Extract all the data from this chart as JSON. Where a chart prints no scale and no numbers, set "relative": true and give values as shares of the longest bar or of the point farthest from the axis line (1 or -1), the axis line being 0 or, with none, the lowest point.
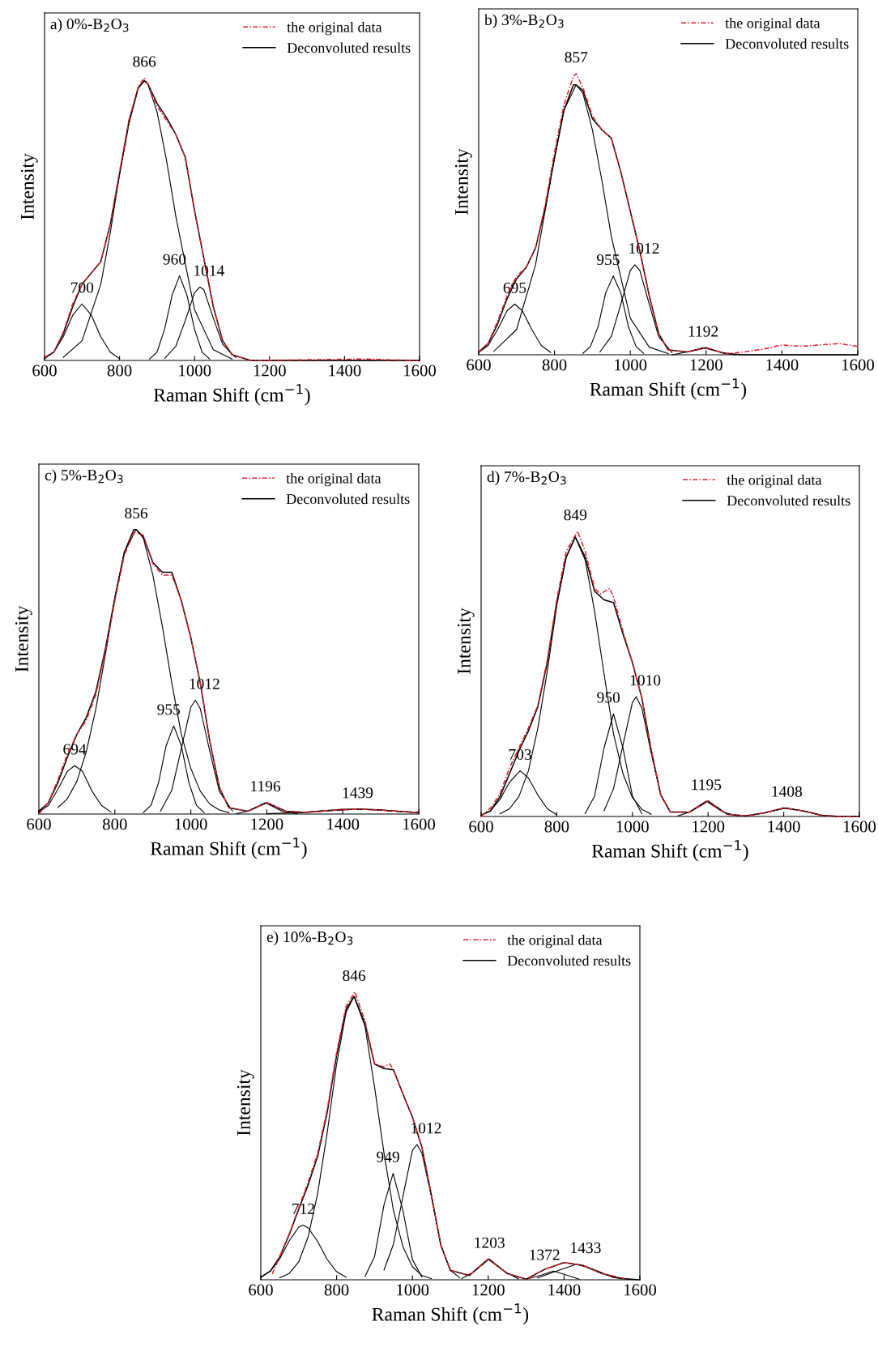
{
  "chart_data": [
    {
      "type": "line",
      "title": "a) 0%-B$_{2}$O$_{3}$",
      "xlabel": "Raman Shift (cm$^{−1}$)",
      "ylabel": "Intensity",
      "relative": true,
      "xlim": [
        600,
        1600
      ],
      "xticks": [
        600,
        800,
        1000,
        1200,
        1400,
        1600
      ],
      "legend": "top right",
      "grid": false,
      "series": [
        {
          "name": "the original data",
          "color": "#e8202a",
          "line_style": "dashed",
          "x": [
            600,
            625,
            650,
            675,
            700,
            725,
            750,
            775,
            800,
            825,
            850,
            866,
            875,
            900,
            925,
            950,
            975,
            1000,
            1025,
            1050,
            1075,
            1100,
            1150,
            1450,
            1595
          ],
          "values": [
            0.01,
            0.03,
            0.1,
            0.2,
            0.27,
            0.31,
            0.35,
            0.48,
            0.67,
            0.85,
            0.97,
            1.0,
            0.98,
            0.9,
            0.85,
            0.8,
            0.72,
            0.53,
            0.36,
            0.19,
            0.07,
            0.02,
            0.0,
            0.005,
            0.0
          ]
        },
        {
          "name": "Deconvoluted results",
          "color": "#000000",
          "x": [
            600,
            625,
            650,
            675,
            700,
            725,
            750,
            775,
            800,
            825,
            850,
            866,
            875,
            900,
            925,
            950,
            975,
            1000,
            1025,
            1050,
            1075,
            1100,
            1150,
            1200,
            1300,
            1400,
            1500,
            1600
          ],
          "values": [
            0.01,
            0.03,
            0.095,
            0.19,
            0.27,
            0.31,
            0.35,
            0.48,
            0.66,
            0.84,
            0.965,
            0.99,
            0.98,
            0.91,
            0.86,
            0.8,
            0.72,
            0.53,
            0.36,
            0.19,
            0.07,
            0.02,
            0.0,
            0.0,
            0.0,
            0.0,
            0.0,
            0.0
          ]
        },
        {
          "color": "#000000",
          "x": [
            600,
            625,
            650,
            675,
            700,
            725,
            750,
            775,
            800
          ],
          "values": [
            0.006,
            0.03,
            0.084,
            0.16,
            0.2,
            0.16,
            0.084,
            0.03,
            0.006
          ]
        },
        {
          "color": "#000000",
          "x": [
            650,
            700,
            750,
            775,
            800,
            825,
            850,
            866,
            875,
            900,
            925,
            950,
            1000,
            1050,
            1100
          ],
          "values": [
            0.011,
            0.07,
            0.27,
            0.45,
            0.66,
            0.85,
            0.965,
            0.99,
            0.98,
            0.88,
            0.71,
            0.51,
            0.18,
            0.038,
            0.005
          ]
        },
        {
          "color": "#000000",
          "x": [
            880,
            900,
            920,
            940,
            960,
            980,
            1000,
            1020,
            1040
          ],
          "values": [
            0.005,
            0.03,
            0.11,
            0.23,
            0.3,
            0.23,
            0.11,
            0.03,
            0.005
          ]
        },
        {
          "color": "#000000",
          "x": [
            920,
            950,
            975,
            1000,
            1014,
            1025,
            1050,
            1075,
            1110
          ],
          "values": [
            0.007,
            0.05,
            0.14,
            0.24,
            0.26,
            0.25,
            0.15,
            0.057,
            0.01
          ]
        }
      ],
      "annotations": [
        {
          "text": "700",
          "x": 700,
          "y": 0.2
        },
        {
          "text": "866",
          "x": 866,
          "y": 1.0
        },
        {
          "text": "960",
          "x": 960,
          "y": 0.3
        },
        {
          "text": "1014",
          "x": 1014,
          "y": 0.26
        }
      ]
    },
    {
      "type": "line",
      "title": "b) 3%-B$_{2}$O$_{3}$",
      "xlabel": "Raman Shift (cm$^{−1}$)",
      "ylabel": "Intensity",
      "relative": true,
      "xlim": [
        600,
        1600
      ],
      "xticks": [
        600,
        800,
        1000,
        1200,
        1400,
        1600
      ],
      "legend": "top right",
      "grid": false,
      "series": [
        {
          "name": "the original data",
          "color": "#e8202a",
          "line_style": "dashed",
          "x": [
            600,
            625,
            650,
            675,
            700,
            725,
            750,
            775,
            800,
            825,
            850,
            857,
            875,
            900,
            925,
            950,
            975,
            1000,
            1025,
            1050,
            1075,
            1100,
            1150,
            1200,
            1250,
            1300,
            1350,
            1400,
            1450,
            1500,
            1550,
            1600
          ],
          "values": [
            0.01,
            0.04,
            0.12,
            0.21,
            0.28,
            0.31,
            0.38,
            0.53,
            0.72,
            0.89,
            0.99,
            1.0,
            0.95,
            0.85,
            0.8,
            0.77,
            0.65,
            0.51,
            0.37,
            0.21,
            0.075,
            0.017,
            0.01,
            0.025,
            0.004,
            0.01,
            0.02,
            0.035,
            0.03,
            0.035,
            0.04,
            0.03
          ]
        },
        {
          "name": "Deconvoluted results",
          "color": "#000000",
          "x": [
            600,
            625,
            650,
            675,
            700,
            725,
            750,
            775,
            800,
            825,
            850,
            857,
            875,
            900,
            925,
            950,
            975,
            1000,
            1025,
            1050,
            1075,
            1100,
            1150,
            1200,
            1250,
            1300,
            1400,
            1500,
            1600
          ],
          "values": [
            0.01,
            0.04,
            0.11,
            0.2,
            0.27,
            0.31,
            0.38,
            0.52,
            0.7,
            0.87,
            0.96,
            0.96,
            0.94,
            0.84,
            0.8,
            0.77,
            0.65,
            0.51,
            0.37,
            0.21,
            0.075,
            0.017,
            0.01,
            0.025,
            0.004,
            0.0,
            0.0,
            0.0,
            0.0
          ]
        },
        {
          "color": "#000000",
          "x": [
            600,
            625,
            650,
            675,
            695,
            715,
            740,
            765,
            790
          ],
          "values": [
            0.008,
            0.033,
            0.09,
            0.157,
            0.18,
            0.157,
            0.09,
            0.033,
            0.008
          ]
        },
        {
          "color": "#000000",
          "x": [
            640,
            700,
            750,
            800,
            825,
            857,
            875,
            900,
            925,
            950,
            1000,
            1050,
            1100
          ],
          "values": [
            0.012,
            0.09,
            0.32,
            0.7,
            0.87,
            0.96,
            0.93,
            0.8,
            0.62,
            0.42,
            0.13,
            0.027,
            0.004
          ]
        },
        {
          "color": "#000000",
          "x": [
            875,
            895,
            915,
            935,
            955,
            975,
            995,
            1015,
            1035
          ],
          "values": [
            0.005,
            0.03,
            0.1,
            0.22,
            0.28,
            0.22,
            0.1,
            0.03,
            0.005
          ]
        },
        {
          "color": "#000000",
          "x": [
            920,
            950,
            975,
            1000,
            1012,
            1025,
            1050,
            1075,
            1110
          ],
          "values": [
            0.01,
            0.066,
            0.18,
            0.3,
            0.32,
            0.3,
            0.18,
            0.064,
            0.008
          ]
        },
        {
          "color": "#000000",
          "x": [
            1110,
            1150,
            1192,
            1235,
            1275
          ],
          "values": [
            0.0,
            0.01,
            0.025,
            0.01,
            0.0
          ]
        }
      ],
      "annotations": [
        {
          "text": "695",
          "x": 695,
          "y": 0.18
        },
        {
          "text": "857",
          "x": 857,
          "y": 1.0
        },
        {
          "text": "955",
          "x": 955,
          "y": 0.28
        },
        {
          "text": "1012",
          "x": 1012,
          "y": 0.32
        },
        {
          "text": "1192",
          "x": 1192,
          "y": 0.025
        }
      ]
    },
    {
      "type": "line",
      "title": "c) 5%-B$_{2}$O$_{3}$",
      "xlabel": "Raman Shift (cm$^{−1}$)",
      "ylabel": "Intensity",
      "relative": true,
      "xlim": [
        600,
        1600
      ],
      "xticks": [
        600,
        800,
        1000,
        1200,
        1400,
        1600
      ],
      "legend": "top right",
      "grid": false,
      "series": [
        {
          "name": "the original data",
          "color": "#e8202a",
          "line_style": "dashed",
          "x": [
            600,
            625,
            650,
            675,
            700,
            725,
            750,
            775,
            800,
            825,
            850,
            856,
            875,
            900,
            925,
            950,
            975,
            1000,
            1025,
            1050,
            1075,
            1100,
            1150,
            1200,
            1250,
            1300,
            1350,
            1400,
            1450,
            1500,
            1550,
            1600
          ],
          "values": [
            0.0,
            0.04,
            0.12,
            0.21,
            0.28,
            0.33,
            0.42,
            0.57,
            0.75,
            0.91,
            0.99,
            0.99,
            0.98,
            0.88,
            0.84,
            0.84,
            0.75,
            0.62,
            0.46,
            0.255,
            0.094,
            0.022,
            0.01,
            0.04,
            0.01,
            0.006,
            0.011,
            0.016,
            0.017,
            0.014,
            0.009,
            0.005
          ]
        },
        {
          "name": "Deconvoluted results",
          "color": "#000000",
          "x": [
            600,
            625,
            650,
            675,
            700,
            725,
            750,
            775,
            800,
            825,
            850,
            856,
            875,
            900,
            925,
            950,
            975,
            1000,
            1025,
            1050,
            1075,
            1100,
            1150,
            1200,
            1250,
            1300,
            1350,
            1400,
            1450,
            1500,
            1550,
            1600
          ],
          "values": [
            0.01,
            0.04,
            0.11,
            0.2,
            0.28,
            0.34,
            0.43,
            0.58,
            0.76,
            0.92,
            1.0,
            1.0,
            0.975,
            0.885,
            0.85,
            0.85,
            0.75,
            0.62,
            0.46,
            0.255,
            0.094,
            0.022,
            0.01,
            0.04,
            0.01,
            0.006,
            0.011,
            0.016,
            0.017,
            0.014,
            0.009,
            0.005
          ]
        },
        {
          "color": "#000000",
          "x": [
            600,
            625,
            650,
            675,
            694,
            715,
            740,
            765,
            790
          ],
          "values": [
            0.008,
            0.03,
            0.087,
            0.15,
            0.17,
            0.15,
            0.08,
            0.03,
            0.007
          ]
        },
        {
          "color": "#000000",
          "x": [
            650,
            675,
            700,
            725,
            750,
            775,
            800,
            825,
            856,
            875,
            900,
            925,
            950,
            975,
            1000,
            1025,
            1050,
            1075,
            1100
          ],
          "values": [
            0.023,
            0.054,
            0.115,
            0.22,
            0.37,
            0.56,
            0.76,
            0.92,
            1.0,
            0.97,
            0.84,
            0.66,
            0.46,
            0.28,
            0.16,
            0.08,
            0.035,
            0.014,
            0.005
          ]
        },
        {
          "color": "#000000",
          "x": [
            875,
            895,
            915,
            935,
            955,
            975,
            995,
            1015,
            1035
          ],
          "values": [
            0.005,
            0.03,
            0.11,
            0.24,
            0.31,
            0.24,
            0.11,
            0.03,
            0.005
          ]
        },
        {
          "color": "#000000",
          "x": [
            920,
            950,
            975,
            1000,
            1012,
            1025,
            1050,
            1075,
            1110
          ],
          "values": [
            0.01,
            0.084,
            0.23,
            0.376,
            0.4,
            0.37,
            0.22,
            0.08,
            0.01
          ]
        },
        {
          "color": "#000000",
          "x": [
            1120,
            1150,
            1196,
            1240,
            1280
          ],
          "values": [
            0.001,
            0.01,
            0.04,
            0.01,
            0.001
          ]
        },
        {
          "color": "#000000",
          "x": [
            1200,
            1300,
            1350,
            1439,
            1500,
            1550,
            1600
          ],
          "values": [
            0.001,
            0.006,
            0.011,
            0.017,
            0.014,
            0.009,
            0.005
          ]
        }
      ],
      "annotations": [
        {
          "text": "694",
          "x": 694,
          "y": 0.17
        },
        {
          "text": "856",
          "x": 856,
          "y": 1.0
        },
        {
          "text": "955",
          "x": 955,
          "y": 0.31
        },
        {
          "text": "1012",
          "x": 1012,
          "y": 0.4
        },
        {
          "text": "1196",
          "x": 1196,
          "y": 0.04
        },
        {
          "text": "1439",
          "x": 1439,
          "y": 0.017
        }
      ]
    },
    {
      "type": "line",
      "title": "d) 7%-B$_{2}$O$_{3}$",
      "xlabel": "Raman Shift (cm$^{−1}$)",
      "ylabel": "Intensity",
      "relative": true,
      "xlim": [
        600,
        1600
      ],
      "xticks": [
        600,
        800,
        1000,
        1200,
        1400,
        1600
      ],
      "legend": "top right",
      "grid": false,
      "series": [
        {
          "name": "the original data",
          "color": "#e8202a",
          "line_style": "dashed",
          "x": [
            600,
            625,
            650,
            675,
            700,
            725,
            750,
            775,
            800,
            825,
            855,
            875,
            900,
            915,
            940,
            950,
            975,
            1000,
            1025,
            1050,
            1075,
            1100,
            1150,
            1200,
            1250,
            1300,
            1350,
            1400,
            1450,
            1500,
            1550,
            1595
          ],
          "values": [
            0.0,
            0.03,
            0.08,
            0.17,
            0.24,
            0.31,
            0.39,
            0.55,
            0.76,
            0.93,
            1.0,
            0.93,
            0.8,
            0.78,
            0.8,
            0.77,
            0.65,
            0.54,
            0.415,
            0.23,
            0.075,
            0.016,
            0.015,
            0.054,
            0.008,
            0.002,
            0.013,
            0.03,
            0.02,
            0.004,
            0.0,
            0.001
          ]
        },
        {
          "name": "Deconvoluted results",
          "color": "#000000",
          "x": [
            600,
            625,
            650,
            675,
            700,
            725,
            750,
            775,
            800,
            825,
            849,
            875,
            900,
            925,
            950,
            975,
            1000,
            1025,
            1050,
            1075,
            1100,
            1150,
            1200,
            1250,
            1300,
            1350,
            1400,
            1450,
            1500,
            1550,
            1600
          ],
          "values": [
            0.004,
            0.02,
            0.07,
            0.15,
            0.23,
            0.3,
            0.385,
            0.54,
            0.75,
            0.91,
            0.98,
            0.91,
            0.79,
            0.76,
            0.75,
            0.64,
            0.54,
            0.415,
            0.23,
            0.075,
            0.016,
            0.015,
            0.054,
            0.008,
            0.002,
            0.013,
            0.03,
            0.02,
            0.004,
            0.0,
            0.0
          ]
        },
        {
          "color": "#000000",
          "x": [
            600,
            625,
            650,
            675,
            703,
            725,
            750,
            775,
            800
          ],
          "values": [
            0.004,
            0.02,
            0.06,
            0.12,
            0.16,
            0.135,
            0.075,
            0.027,
            0.006
          ]
        },
        {
          "color": "#000000",
          "x": [
            650,
            675,
            700,
            725,
            750,
            775,
            800,
            825,
            849,
            875,
            900,
            925,
            950,
            975,
            1000,
            1025,
            1050
          ],
          "values": [
            0.009,
            0.027,
            0.07,
            0.16,
            0.31,
            0.51,
            0.74,
            0.91,
            0.98,
            0.9,
            0.72,
            0.5,
            0.29,
            0.15,
            0.066,
            0.025,
            0.008
          ]
        },
        {
          "color": "#000000",
          "x": [
            875,
            900,
            925,
            950,
            975,
            1000,
            1025
          ],
          "values": [
            0.01,
            0.072,
            0.24,
            0.36,
            0.24,
            0.072,
            0.01
          ]
        },
        {
          "color": "#000000",
          "x": [
            925,
            950,
            975,
            1000,
            1010,
            1025,
            1050,
            1075,
            1100
          ],
          "values": [
            0.02,
            0.097,
            0.25,
            0.4,
            0.42,
            0.38,
            0.22,
            0.075,
            0.016
          ]
        },
        {
          "color": "#000000",
          "x": [
            1120,
            1150,
            1195,
            1240,
            1280
          ],
          "values": [
            0.002,
            0.015,
            0.054,
            0.015,
            0.002
          ]
        },
        {
          "color": "#000000",
          "x": [
            1300,
            1350,
            1408,
            1450,
            1500,
            1550
          ],
          "values": [
            0.002,
            0.013,
            0.03,
            0.02,
            0.004,
            0.0
          ]
        }
      ],
      "annotations": [
        {
          "text": "703",
          "x": 703,
          "y": 0.16
        },
        {
          "text": "849",
          "x": 849,
          "y": 1.0
        },
        {
          "text": "950",
          "x": 950,
          "y": 0.36
        },
        {
          "text": "1010",
          "x": 1010,
          "y": 0.42
        },
        {
          "text": "1195",
          "x": 1195,
          "y": 0.054
        },
        {
          "text": "1408",
          "x": 1408,
          "y": 0.03
        }
      ]
    },
    {
      "type": "line",
      "title": "e) 10%-B$_{2}$O$_{3}$",
      "xlabel": "Raman Shift (cm$^{−1}$)",
      "ylabel": "Intensity",
      "relative": true,
      "xlim": [
        600,
        1600
      ],
      "xticks": [
        600,
        800,
        1000,
        1200,
        1400,
        1600
      ],
      "legend": "top right",
      "grid": false,
      "series": [
        {
          "name": "the original data",
          "color": "#e8202a",
          "line_style": "dashed",
          "x": [
            630,
            650,
            675,
            700,
            725,
            750,
            775,
            800,
            825,
            848,
            875,
            900,
            925,
            940,
            950,
            975,
            1000,
            1025,
            1050,
            1075,
            1100,
            1150,
            1200,
            1250,
            1300,
            1350,
            1400,
            1450,
            1500,
            1560
          ],
          "values": [
            0.02,
            0.08,
            0.16,
            0.25,
            0.34,
            0.44,
            0.59,
            0.79,
            0.95,
            1.0,
            0.9,
            0.75,
            0.74,
            0.75,
            0.73,
            0.645,
            0.565,
            0.46,
            0.294,
            0.12,
            0.033,
            0.015,
            0.072,
            0.022,
            0.002,
            0.037,
            0.06,
            0.05,
            0.022,
            0.004
          ]
        },
        {
          "name": "Deconvoluted results",
          "color": "#000000",
          "x": [
            600,
            625,
            650,
            675,
            700,
            725,
            750,
            775,
            800,
            825,
            846,
            875,
            900,
            925,
            950,
            975,
            1000,
            1025,
            1050,
            1075,
            1100,
            1150,
            1200,
            1250,
            1300,
            1350,
            1400,
            1450,
            1500,
            1550,
            1600
          ],
          "values": [
            0.009,
            0.03,
            0.08,
            0.157,
            0.245,
            0.33,
            0.43,
            0.58,
            0.78,
            0.94,
            0.985,
            0.89,
            0.75,
            0.734,
            0.73,
            0.645,
            0.565,
            0.46,
            0.294,
            0.12,
            0.033,
            0.015,
            0.072,
            0.022,
            0.002,
            0.037,
            0.06,
            0.05,
            0.022,
            0.004,
            0.0
          ]
        },
        {
          "color": "#000000",
          "x": [
            600,
            625,
            650,
            675,
            700,
            712,
            725,
            750,
            775,
            800,
            825
          ],
          "values": [
            0.009,
            0.03,
            0.073,
            0.135,
            0.183,
            0.19,
            0.18,
            0.133,
            0.071,
            0.028,
            0.009
          ]
        },
        {
          "color": "#000000",
          "x": [
            650,
            675,
            700,
            725,
            750,
            775,
            800,
            825,
            846,
            875,
            900,
            925,
            950,
            975,
            1000,
            1025,
            1050
          ],
          "values": [
            0.007,
            0.022,
            0.062,
            0.15,
            0.3,
            0.51,
            0.75,
            0.93,
            0.985,
            0.88,
            0.67,
            0.44,
            0.24,
            0.115,
            0.045,
            0.015,
            0.004
          ]
        },
        {
          "color": "#000000",
          "x": [
            875,
            900,
            925,
            949,
            975,
            1000,
            1025
          ],
          "values": [
            0.011,
            0.08,
            0.26,
            0.37,
            0.24,
            0.07,
            0.009
          ]
        },
        {
          "color": "#000000",
          "x": [
            925,
            950,
            975,
            1000,
            1012,
            1025,
            1050,
            1075,
            1100,
            1125
          ],
          "values": [
            0.034,
            0.124,
            0.29,
            0.45,
            0.47,
            0.44,
            0.29,
            0.12,
            0.033,
            0.007
          ]
        },
        {
          "color": "#000000",
          "x": [
            1130,
            1160,
            1203,
            1245,
            1280
          ],
          "values": [
            0.004,
            0.026,
            0.072,
            0.027,
            0.003
          ]
        },
        {
          "color": "#000000",
          "x": [
            1300,
            1340,
            1372,
            1405,
            1440
          ],
          "values": [
            0.002,
            0.016,
            0.03,
            0.017,
            0.002
          ]
        },
        {
          "color": "#000000",
          "x": [
            1330,
            1380,
            1433,
            1480,
            1530,
            1580
          ],
          "values": [
            0.006,
            0.03,
            0.054,
            0.035,
            0.008,
            0.001
          ]
        }
      ],
      "annotations": [
        {
          "text": "712",
          "x": 712,
          "y": 0.19
        },
        {
          "text": "846",
          "x": 846,
          "y": 1.0
        },
        {
          "text": "949",
          "x": 949,
          "y": 0.37
        },
        {
          "text": "1012",
          "x": 1012,
          "y": 0.47
        },
        {
          "text": "1203",
          "x": 1203,
          "y": 0.072
        },
        {
          "text": "1372",
          "x": 1372,
          "y": 0.03
        },
        {
          "text": "1433",
          "x": 1433,
          "y": 0.054
        }
      ]
    }
  ]
}
